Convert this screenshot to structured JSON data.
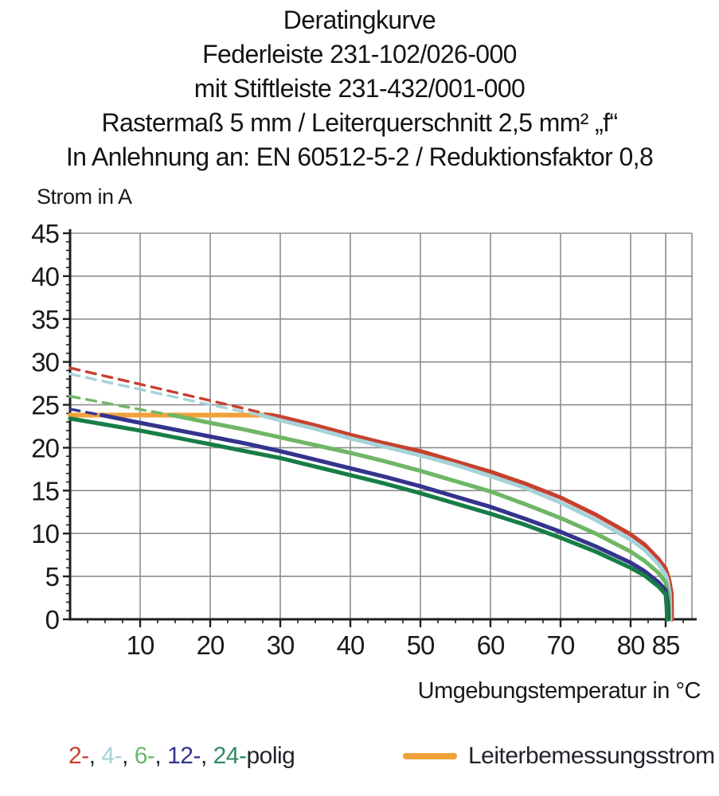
{
  "title": {
    "lines": [
      "Deratingkurve",
      "Federleiste 231-102/026-000",
      "mit Stiftleiste 231-432/001-000",
      "Rastermaß 5 mm / Leiterquerschnitt 2,5 mm² „f“",
      "In Anlehnung an: EN 60512-5-2 / Reduktionsfaktor 0,8"
    ]
  },
  "colors": {
    "red": "#c7402e",
    "cyan": "#a6d2d8",
    "light_green": "#6eb765",
    "indigo": "#34348e",
    "dark_green": "#177d46",
    "orange": "#f0a13a",
    "grid": "#8d8d8d",
    "axis": "#1f1f1f",
    "text": "#1a1a1a"
  },
  "legend": {
    "poles": [
      {
        "label": "2-",
        "color": "#c7402e"
      },
      {
        "label": "4-",
        "color": "#a6d2d8"
      },
      {
        "label": "6-",
        "color": "#6eb765"
      },
      {
        "label": "12-",
        "color": "#34348e"
      },
      {
        "label": "24-",
        "color": "#2f8a60"
      }
    ],
    "separator": ", ",
    "suffix": "polig",
    "rated_label": "Leiterbemessungsstrom",
    "rated_color": "#f0a13a"
  },
  "chart_data": {
    "type": "line",
    "title": "Deratingkurve",
    "xlabel": "Umgebungstemperatur in °C",
    "ylabel": "Strom in A",
    "xlim": [
      0,
      88.75
    ],
    "ylim": [
      0,
      45
    ],
    "x_ticks_major": [
      10,
      20,
      30,
      40,
      50,
      60,
      70,
      80,
      85
    ],
    "x_tick_minor_step": 2.5,
    "y_ticks_major": [
      0,
      5,
      10,
      15,
      20,
      25,
      30,
      35,
      40,
      45
    ],
    "y_tick_minor_step": 1,
    "grid": true,
    "legend_position": "bottom",
    "series": [
      {
        "name": "Leiterbemessungsstrom",
        "color": "#f0a13a",
        "segments": [
          {
            "style": "solid",
            "points": [
              [
                0,
                23.8
              ],
              [
                28.8,
                23.8
              ]
            ]
          }
        ]
      },
      {
        "name": "2-polig",
        "color": "#c7402e",
        "segments": [
          {
            "style": "dashed",
            "points": [
              [
                0,
                29.3
              ],
              [
                10,
                27.4
              ],
              [
                20,
                25.5
              ],
              [
                28.8,
                23.8
              ]
            ]
          },
          {
            "style": "solid",
            "points": [
              [
                28.8,
                23.8
              ],
              [
                30,
                23.6
              ],
              [
                35,
                22.6
              ],
              [
                40,
                21.5
              ],
              [
                45,
                20.5
              ],
              [
                50,
                19.6
              ],
              [
                55,
                18.4
              ],
              [
                60,
                17.2
              ],
              [
                65,
                15.8
              ],
              [
                70,
                14.2
              ],
              [
                75,
                12.2
              ],
              [
                80,
                9.9
              ],
              [
                82,
                8.7
              ],
              [
                84,
                7.0
              ],
              [
                85,
                5.9
              ],
              [
                85.5,
                4.6
              ],
              [
                85.85,
                3.0
              ],
              [
                85.9,
                0
              ]
            ]
          }
        ]
      },
      {
        "name": "4-polig",
        "color": "#a6d2d8",
        "segments": [
          {
            "style": "dashed",
            "points": [
              [
                0,
                28.6
              ],
              [
                10,
                26.8
              ],
              [
                20,
                25.0
              ],
              [
                27.2,
                23.8
              ]
            ]
          },
          {
            "style": "solid",
            "points": [
              [
                27.2,
                23.8
              ],
              [
                30,
                23.2
              ],
              [
                35,
                22.2
              ],
              [
                40,
                21.1
              ],
              [
                45,
                20.1
              ],
              [
                50,
                19.1
              ],
              [
                55,
                18.0
              ],
              [
                60,
                16.7
              ],
              [
                65,
                15.3
              ],
              [
                70,
                13.6
              ],
              [
                75,
                11.6
              ],
              [
                80,
                9.3
              ],
              [
                82,
                8.1
              ],
              [
                84,
                6.4
              ],
              [
                85,
                5.2
              ],
              [
                85.3,
                4.4
              ],
              [
                85.6,
                2.8
              ],
              [
                85.65,
                0
              ]
            ]
          }
        ]
      },
      {
        "name": "6-polig",
        "color": "#6eb765",
        "segments": [
          {
            "style": "dashed",
            "points": [
              [
                0,
                26.0
              ],
              [
                7,
                24.9
              ],
              [
                14.5,
                23.8
              ]
            ]
          },
          {
            "style": "solid",
            "points": [
              [
                14.5,
                23.8
              ],
              [
                20,
                22.9
              ],
              [
                25,
                22.1
              ],
              [
                30,
                21.2
              ],
              [
                35,
                20.3
              ],
              [
                40,
                19.4
              ],
              [
                45,
                18.4
              ],
              [
                50,
                17.3
              ],
              [
                55,
                16.1
              ],
              [
                60,
                14.9
              ],
              [
                65,
                13.4
              ],
              [
                70,
                11.8
              ],
              [
                75,
                10.0
              ],
              [
                80,
                7.9
              ],
              [
                82,
                6.8
              ],
              [
                84,
                5.4
              ],
              [
                85,
                4.3
              ],
              [
                85.45,
                2.6
              ],
              [
                85.5,
                0
              ]
            ]
          }
        ]
      },
      {
        "name": "12-polig",
        "color": "#34348e",
        "segments": [
          {
            "style": "dashed",
            "points": [
              [
                0,
                24.5
              ],
              [
                4.5,
                23.8
              ]
            ]
          },
          {
            "style": "solid",
            "points": [
              [
                4.5,
                23.8
              ],
              [
                10,
                22.9
              ],
              [
                15,
                22.1
              ],
              [
                20,
                21.3
              ],
              [
                25,
                20.5
              ],
              [
                30,
                19.6
              ],
              [
                35,
                18.6
              ],
              [
                40,
                17.6
              ],
              [
                45,
                16.6
              ],
              [
                50,
                15.5
              ],
              [
                55,
                14.3
              ],
              [
                60,
                13.1
              ],
              [
                65,
                11.7
              ],
              [
                70,
                10.2
              ],
              [
                75,
                8.5
              ],
              [
                80,
                6.6
              ],
              [
                82,
                5.6
              ],
              [
                84,
                4.3
              ],
              [
                85,
                3.4
              ],
              [
                85.3,
                1.8
              ],
              [
                85.35,
                0
              ]
            ]
          }
        ]
      },
      {
        "name": "24-polig",
        "color": "#177d46",
        "segments": [
          {
            "style": "solid",
            "points": [
              [
                0,
                23.4
              ],
              [
                5,
                22.7
              ],
              [
                10,
                22.0
              ],
              [
                15,
                21.2
              ],
              [
                20,
                20.4
              ],
              [
                25,
                19.6
              ],
              [
                30,
                18.8
              ],
              [
                35,
                17.8
              ],
              [
                40,
                16.8
              ],
              [
                45,
                15.8
              ],
              [
                50,
                14.7
              ],
              [
                55,
                13.5
              ],
              [
                60,
                12.3
              ],
              [
                65,
                11.0
              ],
              [
                70,
                9.5
              ],
              [
                75,
                7.9
              ],
              [
                80,
                6.0
              ],
              [
                82,
                5.1
              ],
              [
                84,
                3.8
              ],
              [
                85,
                2.9
              ],
              [
                85.15,
                1.4
              ],
              [
                85.2,
                0
              ]
            ]
          }
        ]
      }
    ]
  }
}
